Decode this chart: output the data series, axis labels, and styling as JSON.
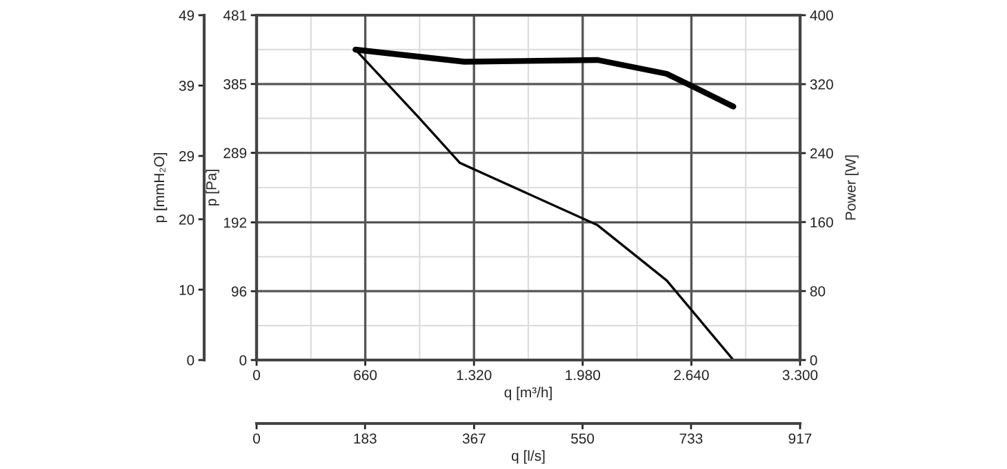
{
  "chart_data": {
    "type": "line",
    "xlabel": "q [m³/h]",
    "ylabel": "p [Pa]",
    "y2label": "Power [W]",
    "y3label": "p [mmH₂O]",
    "x2label": "q [l/s]",
    "xlim": [
      0,
      3300
    ],
    "xticks": [
      0,
      {
        "value": 660,
        "label": "660"
      },
      {
        "value": 1320,
        "label": "1.320"
      },
      {
        "value": 1980,
        "label": "1.980"
      },
      {
        "value": 2640,
        "label": "2.640"
      },
      {
        "value": 3300,
        "label": "3.300"
      }
    ],
    "ylim": [
      0,
      481
    ],
    "yticks": [
      0,
      96,
      192,
      289,
      385,
      481
    ],
    "y2lim": [
      0,
      400
    ],
    "y2ticks": [
      0,
      80,
      160,
      240,
      320,
      400
    ],
    "y3lim": [
      0,
      49
    ],
    "y3ticks": [
      0,
      10,
      20,
      29,
      39,
      49
    ],
    "x2lim": [
      0,
      917
    ],
    "x2ticks": [
      0,
      183,
      367,
      550,
      733,
      917
    ],
    "grid": true,
    "series": [
      {
        "color": "#000000",
        "axis": "y",
        "x": [
          600,
          982,
          1234,
          2071,
          2490,
          2895
        ],
        "values": [
          433,
          339,
          275,
          188,
          111,
          0
        ]
      },
      {
        "color": "#000000",
        "axis": "y2",
        "x": [
          600,
          1262,
          2071,
          2490,
          2630,
          2895
        ],
        "values": [
          360,
          346,
          348,
          332,
          319,
          294
        ]
      }
    ]
  }
}
